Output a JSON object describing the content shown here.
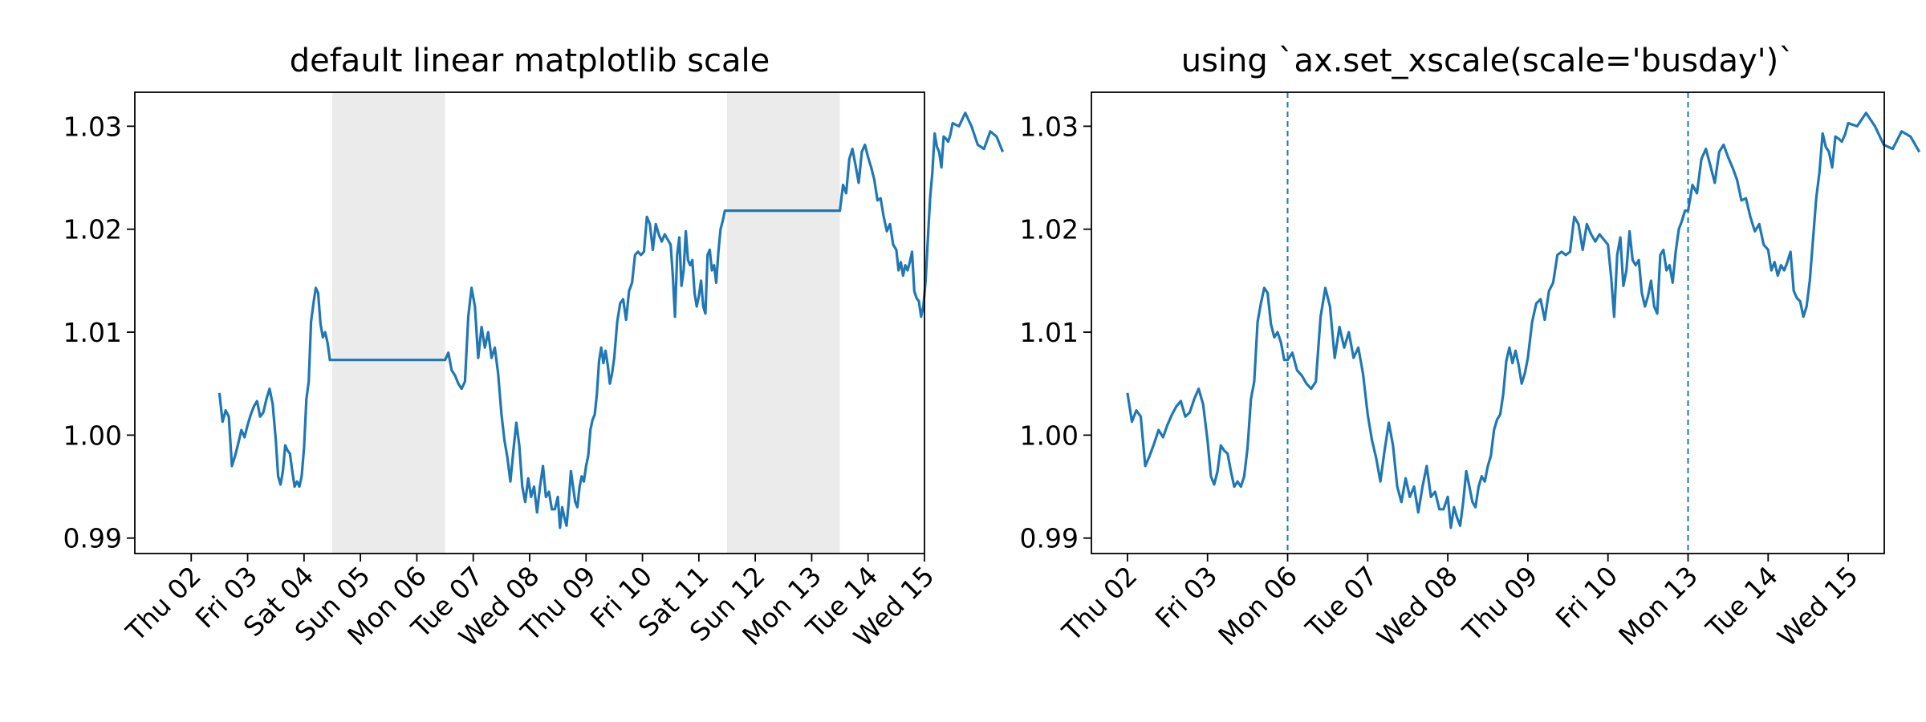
{
  "chart_data": [
    {
      "type": "line",
      "title": "default linear matplotlib scale",
      "xlabel": "",
      "ylabel": "",
      "x_axis": "date",
      "xlim": [
        "2020-01-01T12:00",
        "2020-01-15T12:00"
      ],
      "ylim": [
        0.9885,
        1.0333
      ],
      "x_ticks": [
        "Thu 02",
        "Fri 03",
        "Sat 04",
        "Sun 05",
        "Mon 06",
        "Tue 07",
        "Wed 08",
        "Thu 09",
        "Fri 10",
        "Sat 11",
        "Sun 12",
        "Mon 13",
        "Tue 14",
        "Wed 15"
      ],
      "y_ticks": [
        "0.99",
        "1.00",
        "1.01",
        "1.02",
        "1.03"
      ],
      "weekend_shading": [
        [
          "2020-01-04",
          "2020-01-06"
        ],
        [
          "2020-01-11",
          "2020-01-13"
        ]
      ],
      "grid": false,
      "line_color": "#1f77b4",
      "shade_color": "#ebebeb"
    },
    {
      "type": "line",
      "title": "using `ax.set_xscale(scale='busday')`",
      "xlabel": "",
      "ylabel": "",
      "x_axis": "business-day date",
      "x_ticks": [
        "Thu 02",
        "Fri 03",
        "Mon 06",
        "Tue 07",
        "Wed 08",
        "Thu 09",
        "Fri 10",
        "Mon 13",
        "Tue 14",
        "Wed 15"
      ],
      "y_ticks": [
        "0.99",
        "1.00",
        "1.01",
        "1.02",
        "1.03"
      ],
      "ylim": [
        0.9885,
        1.0333
      ],
      "break_markers": [
        "Mon 06",
        "Mon 13"
      ],
      "grid": false,
      "line_color": "#1f77b4"
    }
  ],
  "series": {
    "days": [
      {
        "date": "2020-01-02",
        "values": [
          1.0041,
          1.0013,
          1.0024,
          1.0018,
          0.997,
          0.998,
          0.9992,
          1.0005,
          0.9998,
          1.001,
          1.002,
          1.0028,
          1.0033,
          1.0018,
          1.0022,
          1.0035,
          1.0045,
          1.003
        ]
      },
      {
        "date": "2020-01-03",
        "values": [
          0.9995,
          0.996,
          0.9952,
          0.9965,
          0.999,
          0.9985,
          0.9982,
          0.9965,
          0.995,
          0.9955,
          0.995,
          0.996,
          0.9988,
          1.0035,
          1.0052,
          1.011,
          1.0128,
          1.0143,
          1.0138,
          1.0108,
          1.0095,
          1.01,
          1.009,
          1.0073
        ]
      },
      {
        "date": "2020-01-06",
        "values": [
          1.0073,
          1.008,
          1.0063,
          1.0058,
          1.005,
          1.0045,
          1.0052,
          1.0115,
          1.0143,
          1.0125,
          1.0075,
          1.0105,
          1.0085,
          1.01,
          1.0075,
          1.0085,
          1.006
        ]
      },
      {
        "date": "2020-01-07",
        "values": [
          1.002,
          0.9995,
          0.9978,
          0.9955,
          0.9985,
          1.0012,
          0.999,
          0.995,
          0.9935,
          0.9958,
          0.994,
          0.995,
          0.9925,
          0.995,
          0.997,
          0.994,
          0.9945,
          0.9928,
          0.9928
        ]
      },
      {
        "date": "2020-01-08",
        "values": [
          0.994,
          0.991,
          0.993,
          0.992,
          0.9912,
          0.9935,
          0.9965,
          0.995,
          0.9935,
          0.993,
          0.995,
          0.996,
          0.9955,
          0.997,
          0.998,
          1.0005,
          1.0015,
          1.002,
          1.004,
          1.0072,
          1.0085,
          1.007,
          1.0082,
          1.0068,
          1.005,
          1.006
        ]
      },
      {
        "date": "2020-01-09",
        "values": [
          1.0075,
          1.011,
          1.0128,
          1.0132,
          1.0112,
          1.014,
          1.0148,
          1.0175,
          1.0178,
          1.0175,
          1.0178,
          1.0212,
          1.0205,
          1.018,
          1.0205,
          1.0195,
          1.0188,
          1.0195,
          1.019
        ]
      },
      {
        "date": "2020-01-10",
        "values": [
          1.0185,
          1.0155,
          1.0115,
          1.0175,
          1.0192,
          1.0145,
          1.016,
          1.0198,
          1.017,
          1.0165,
          1.017,
          1.0138,
          1.0125,
          1.0135,
          1.015,
          1.0125,
          1.0118,
          1.0175,
          1.018,
          1.016,
          1.0165,
          1.0148,
          1.0178,
          1.02,
          1.0208,
          1.0218
        ]
      },
      {
        "date": "2020-01-13",
        "values": [
          1.0218,
          1.0243,
          1.0235,
          1.0268,
          1.0278,
          1.0262,
          1.0245,
          1.0275,
          1.0282,
          1.027,
          1.026,
          1.0248,
          1.0228,
          1.023,
          1.0212,
          1.0198,
          1.0205,
          1.0185
        ]
      },
      {
        "date": "2020-01-14",
        "values": [
          1.018,
          1.016,
          1.0168,
          1.0155,
          1.0165,
          1.016,
          1.0168,
          1.0178,
          1.014,
          1.0133,
          1.013,
          1.0115,
          1.0125,
          1.015,
          1.019,
          1.023,
          1.0255,
          1.0293,
          1.028,
          1.0275,
          1.026,
          1.029,
          1.0288,
          1.0285,
          1.0292
        ]
      },
      {
        "date": "2020-01-15",
        "values": [
          1.0303,
          1.03,
          1.0313,
          1.03,
          1.0282,
          1.0278,
          1.0295,
          1.029,
          1.0275
        ]
      }
    ]
  }
}
